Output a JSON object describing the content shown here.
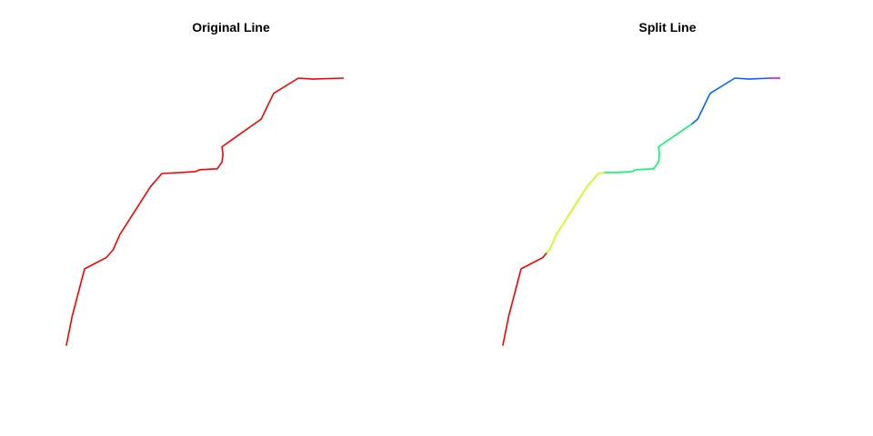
{
  "chart_data": [
    {
      "type": "line",
      "title": "Original Line",
      "axes": "none",
      "grid": false,
      "series": [
        {
          "color": "#ff0000",
          "x": [
            0.0,
            0.06,
            0.19,
            0.42,
            0.49,
            0.56,
            0.88,
            1.0,
            1.2,
            1.35,
            1.4,
            1.58,
            1.63,
            1.64,
            1.63,
            2.04,
            2.17,
            2.43,
            2.58,
            2.9
          ],
          "y": [
            0.0,
            0.3,
            0.8,
            0.92,
            1.0,
            1.16,
            1.66,
            1.8,
            1.81,
            1.82,
            1.84,
            1.85,
            1.92,
            2.0,
            2.08,
            2.37,
            2.64,
            2.8,
            2.79,
            2.8
          ]
        }
      ]
    },
    {
      "type": "line",
      "title": "Split Line",
      "axes": "none",
      "grid": false,
      "series": [
        {
          "color": "#ff0000",
          "x": [
            0.0,
            0.06,
            0.19,
            0.42,
            0.46
          ],
          "y": [
            0.0,
            0.3,
            0.8,
            0.92,
            0.97
          ]
        },
        {
          "color": "#ccff00",
          "x": [
            0.46,
            0.49,
            0.56,
            0.88,
            1.0,
            1.07
          ],
          "y": [
            0.97,
            1.0,
            1.16,
            1.66,
            1.8,
            1.81
          ]
        },
        {
          "color": "#00ff66",
          "x": [
            1.07,
            1.2,
            1.35,
            1.4,
            1.58,
            1.63,
            1.64,
            1.63,
            1.98
          ],
          "y": [
            1.81,
            1.81,
            1.82,
            1.84,
            1.85,
            1.92,
            2.0,
            2.08,
            2.32
          ]
        },
        {
          "color": "#0066ff",
          "x": [
            1.98,
            2.04,
            2.17,
            2.43,
            2.58,
            2.8
          ],
          "y": [
            2.32,
            2.37,
            2.64,
            2.8,
            2.79,
            2.8
          ]
        },
        {
          "color": "#cc00ff",
          "x": [
            2.8,
            2.9
          ],
          "y": [
            2.8,
            2.8
          ]
        }
      ]
    }
  ]
}
